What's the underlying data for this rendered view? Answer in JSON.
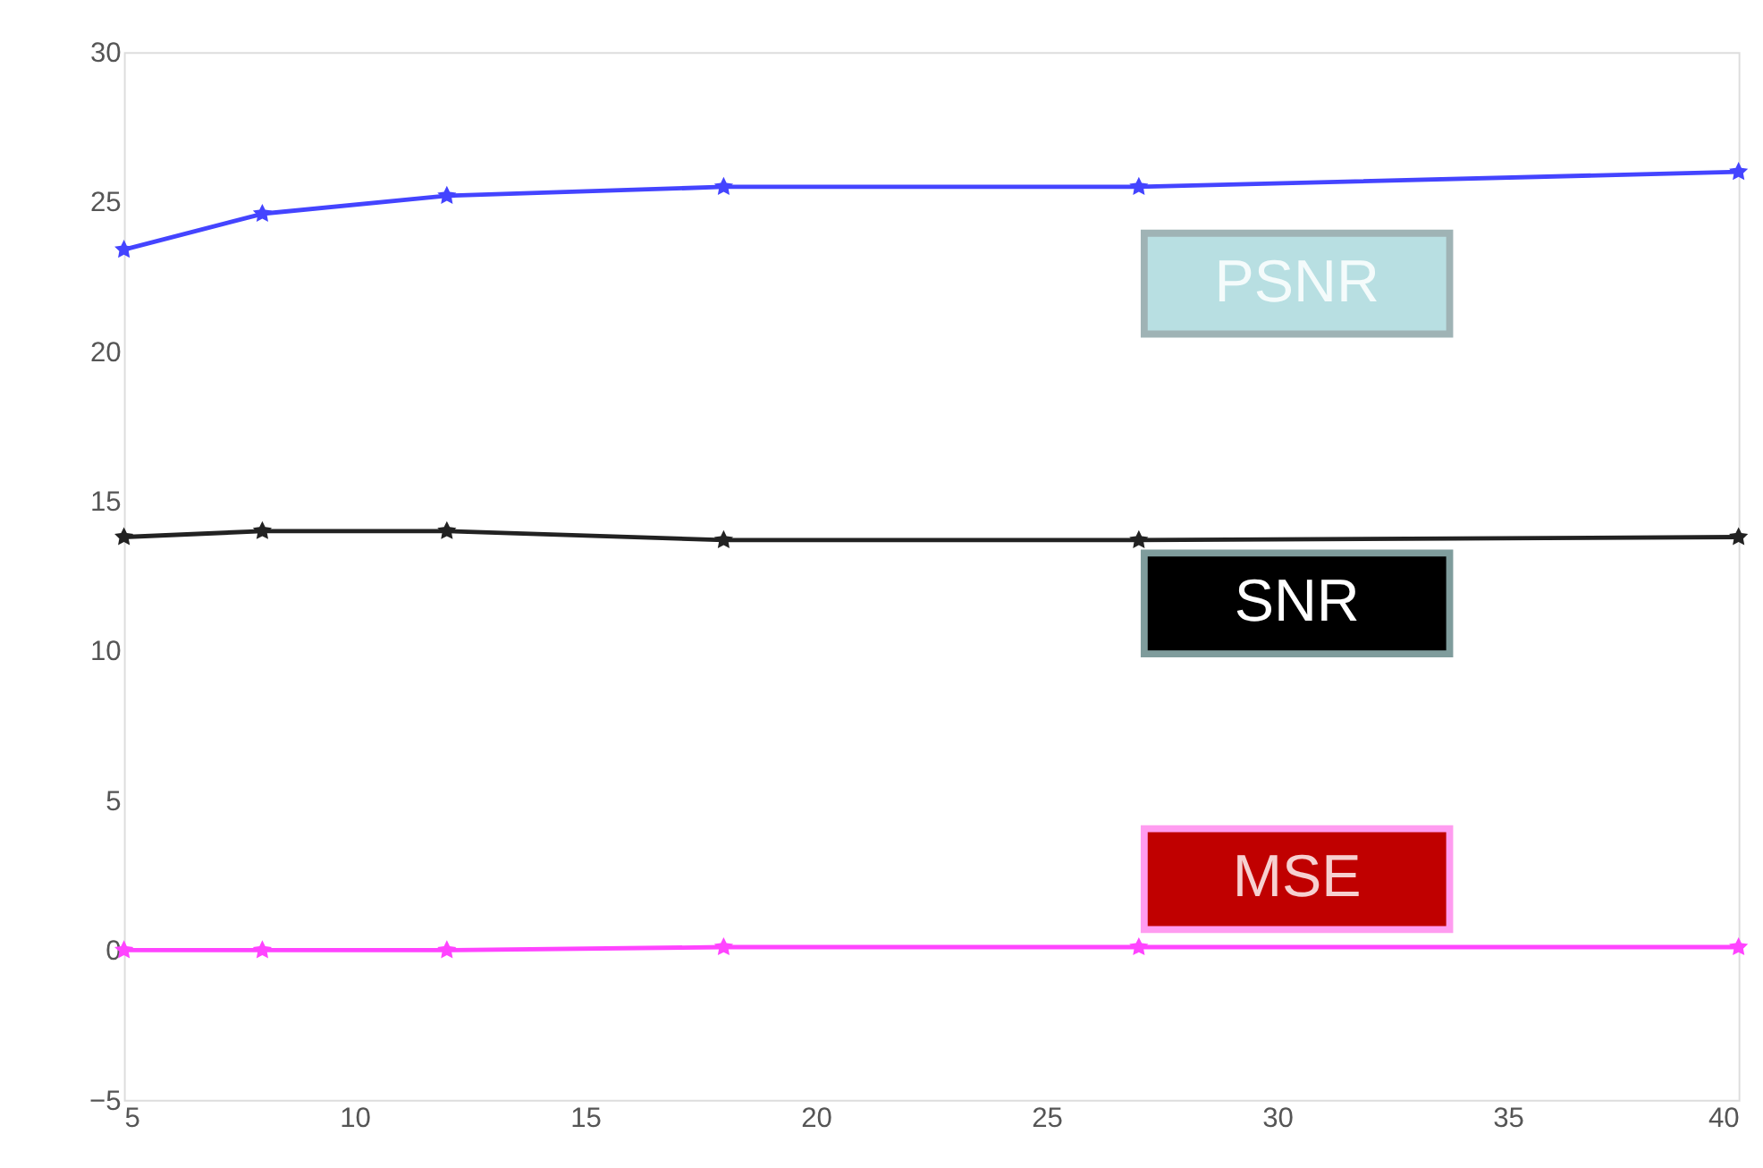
{
  "chart_data": {
    "type": "line",
    "x": [
      5,
      8,
      12,
      18,
      27,
      40
    ],
    "series": [
      {
        "name": "PSNR",
        "color": "#4444ff",
        "values": [
          23.4,
          24.6,
          25.2,
          25.5,
          25.5,
          26.0
        ]
      },
      {
        "name": "SNR",
        "color": "#222222",
        "values": [
          13.8,
          14.0,
          14.0,
          13.7,
          13.7,
          13.8
        ]
      },
      {
        "name": "MSE",
        "color": "#ff44ff",
        "values": [
          0.0,
          0.0,
          0.0,
          0.1,
          0.1,
          0.1
        ]
      }
    ],
    "xlim": [
      5,
      40
    ],
    "xticks": [
      5,
      10,
      15,
      20,
      25,
      30,
      35,
      40
    ],
    "ylim": [
      -5,
      30
    ],
    "yticks": [
      -5,
      0,
      5,
      10,
      15,
      20,
      25,
      30
    ],
    "grid": false,
    "marker": "star",
    "line_style": "solid"
  }
}
